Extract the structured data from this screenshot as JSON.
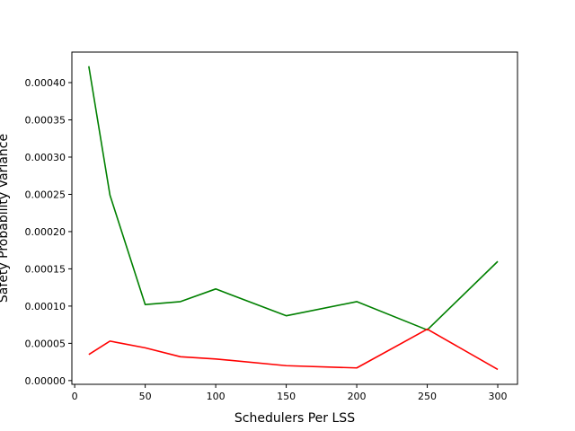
{
  "chart_data": {
    "type": "line",
    "title": "",
    "xlabel": "Schedulers Per LSS",
    "ylabel": "Safety Probability Variance",
    "xlim": [
      -2,
      314
    ],
    "ylim": [
      -5e-06,
      0.000441
    ],
    "xticks": [
      0,
      50,
      100,
      150,
      200,
      250,
      300
    ],
    "xtick_labels": [
      "0",
      "50",
      "100",
      "150",
      "200",
      "250",
      "300"
    ],
    "yticks": [
      0,
      5e-05,
      0.0001,
      0.00015,
      0.0002,
      0.00025,
      0.0003,
      0.00035,
      0.0004
    ],
    "ytick_labels": [
      "0.00000",
      "0.00005",
      "0.00010",
      "0.00015",
      "0.00020",
      "0.00025",
      "0.00030",
      "0.00035",
      "0.00040"
    ],
    "grid": false,
    "series": [
      {
        "color": "#008000",
        "x": [
          10,
          25,
          50,
          75,
          100,
          150,
          200,
          250,
          300
        ],
        "y": [
          0.000422,
          0.000249,
          0.000102,
          0.000106,
          0.000123,
          8.7e-05,
          0.000106,
          6.8e-05,
          0.00016
        ]
      },
      {
        "color": "#ff0000",
        "x": [
          10,
          25,
          50,
          75,
          100,
          150,
          200,
          250,
          300
        ],
        "y": [
          3.5e-05,
          5.3e-05,
          4.4e-05,
          3.2e-05,
          2.9e-05,
          2e-05,
          1.7e-05,
          6.9e-05,
          1.5e-05
        ]
      }
    ]
  }
}
